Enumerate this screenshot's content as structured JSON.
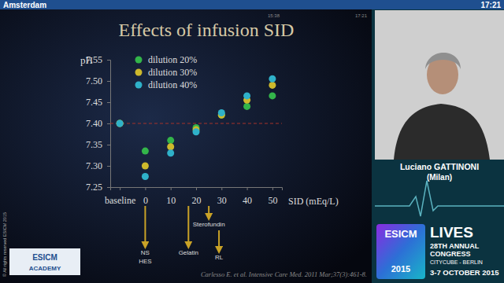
{
  "header": {
    "location": "Amsterdam",
    "clock": "17:21"
  },
  "slide": {
    "timer_left": "15:38",
    "timer_right": "17:21",
    "citation": "Carlesso E. et al. Intensive Care Med. 2011 Mar;37(3):461-8."
  },
  "chart_data": {
    "type": "scatter",
    "title": "Effects of infusion SID",
    "x_label": "SID (mEq/L)",
    "y_label": "pH",
    "categories": [
      "baseline",
      "0",
      "10",
      "20",
      "30",
      "40",
      "50"
    ],
    "series": [
      {
        "name": "dilution 20%",
        "color": "#33b54a",
        "marker": "circle",
        "values": [
          7.4,
          7.335,
          7.36,
          7.39,
          7.42,
          7.44,
          7.465
        ]
      },
      {
        "name": "dilution 30%",
        "color": "#cdb92c",
        "marker": "circle",
        "values": [
          7.4,
          7.3,
          7.345,
          7.385,
          7.42,
          7.455,
          7.49
        ]
      },
      {
        "name": "dilution 40%",
        "color": "#2fb1c9",
        "marker": "circle",
        "values": [
          7.4,
          7.275,
          7.33,
          7.38,
          7.425,
          7.465,
          7.505
        ]
      }
    ],
    "ylim": [
      7.25,
      7.55
    ],
    "yticks": [
      7.25,
      {
        "value": 7.3,
        "label": "7.30"
      },
      7.35,
      {
        "value": 7.4,
        "label": "7.40"
      },
      7.45,
      {
        "value": 7.5,
        "label": "7.50"
      },
      7.55
    ],
    "grid": false,
    "legend": "upper left",
    "reference_line": {
      "value": 7.4,
      "color": "#a5322a",
      "line_style": "dashed"
    },
    "annotations": [
      {
        "x": 0,
        "text": [
          "NS",
          "HES"
        ],
        "color": "#c9a227"
      },
      {
        "x": 17,
        "text": [
          "Gelatin"
        ],
        "color": "#c9a227"
      },
      {
        "x": 25,
        "text": [
          "Sterofundin"
        ],
        "color": "#c9a227"
      },
      {
        "x": 29,
        "text": [
          "RL"
        ],
        "color": "#c9a227"
      }
    ]
  },
  "speaker": {
    "name": "Luciano GATTINONI",
    "city": "(Milan)"
  },
  "branding": {
    "congress": "ESICM",
    "event": "LIVES",
    "year": "2015",
    "edition": "28TH ANNUAL",
    "congress_label": "CONGRESS",
    "venue": "CITYCUBE - BERLIN",
    "dates": "3-7 OCTOBER 2015",
    "academy": [
      "ESICM",
      "ACADEMY"
    ],
    "copyright": "© All rights reserved ESICM 2015"
  }
}
